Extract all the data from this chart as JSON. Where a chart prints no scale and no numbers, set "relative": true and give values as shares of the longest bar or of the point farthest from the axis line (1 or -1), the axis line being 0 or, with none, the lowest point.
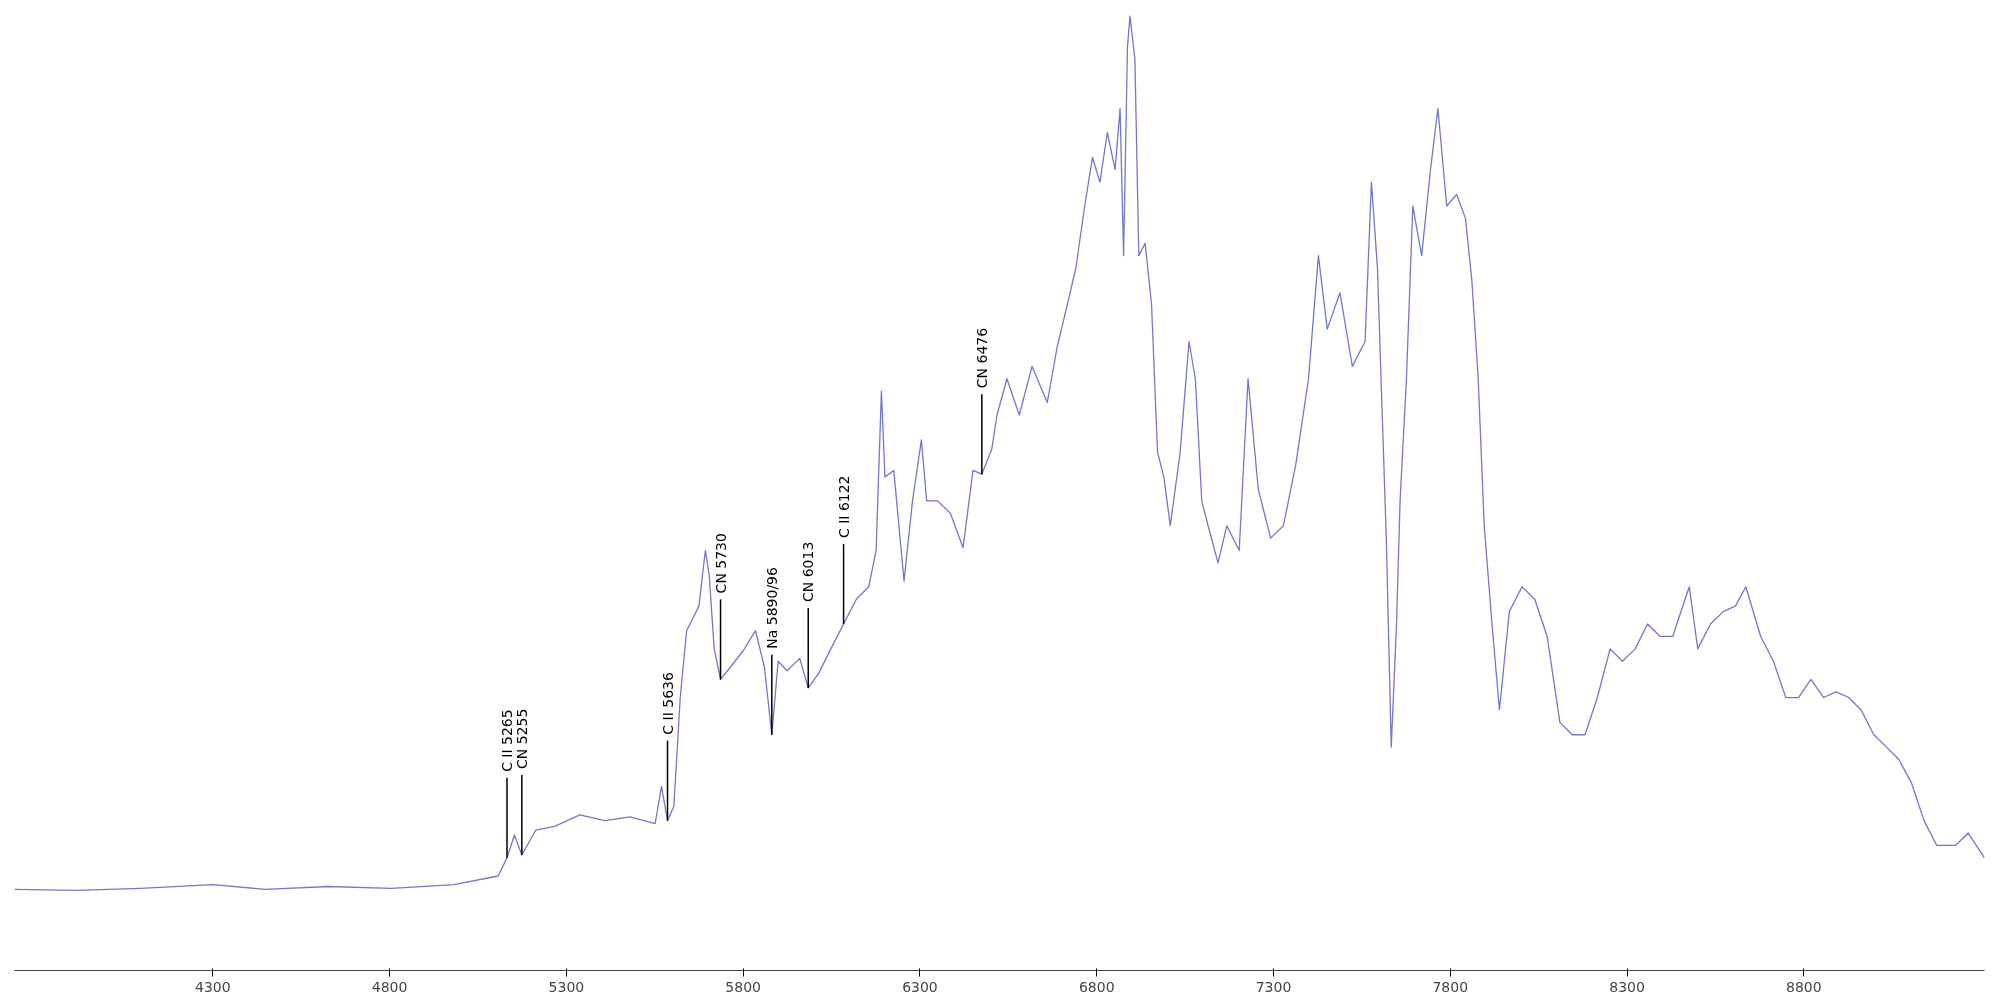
{
  "chart_data": {
    "type": "line",
    "relative": true,
    "grid": false,
    "marker": "none",
    "line_style": "solid",
    "xlim": [
      3739,
      9311
    ],
    "xticks": [
      4300,
      4800,
      5300,
      5800,
      6300,
      6800,
      7300,
      7800,
      8300,
      8800
    ],
    "tick_labels": "x",
    "series": [
      {
        "color": "#7378c8",
        "x": [
          3739,
          3916,
          4094,
          4300,
          4449,
          4627,
          4805,
          4982,
          5107,
          5132,
          5153,
          5174,
          5213,
          5267,
          5338,
          5409,
          5480,
          5551,
          5569,
          5586,
          5604,
          5622,
          5640,
          5658,
          5675,
          5693,
          5704,
          5718,
          5736,
          5764,
          5800,
          5835,
          5860,
          5881,
          5899,
          5924,
          5960,
          5984,
          6013,
          6048,
          6084,
          6120,
          6155,
          6176,
          6191,
          6201,
          6226,
          6255,
          6279,
          6304,
          6319,
          6350,
          6386,
          6422,
          6450,
          6475,
          6503,
          6518,
          6546,
          6581,
          6617,
          6660,
          6688,
          6717,
          6741,
          6766,
          6788,
          6809,
          6830,
          6852,
          6866,
          6876,
          6887,
          6894,
          6908,
          6919,
          6937,
          6955,
          6972,
          6990,
          7008,
          7036,
          7061,
          7079,
          7097,
          7115,
          7143,
          7168,
          7203,
          7228,
          7257,
          7292,
          7328,
          7363,
          7399,
          7427,
          7452,
          7488,
          7523,
          7559,
          7577,
          7594,
          7619,
          7633,
          7648,
          7658,
          7676,
          7694,
          7719,
          7744,
          7765,
          7790,
          7818,
          7843,
          7861,
          7879,
          7896,
          7918,
          7939,
          7967,
          8003,
          8039,
          8074,
          8110,
          8145,
          8181,
          8216,
          8252,
          8287,
          8323,
          8358,
          8394,
          8429,
          8476,
          8500,
          8536,
          8572,
          8607,
          8636,
          8678,
          8714,
          8749,
          8785,
          8820,
          8856,
          8891,
          8927,
          8962,
          8998,
          9034,
          9069,
          9105,
          9140,
          9176,
          9229,
          9265,
          9311
        ],
        "values": [
          0.085,
          0.084,
          0.086,
          0.09,
          0.085,
          0.088,
          0.086,
          0.09,
          0.099,
          0.118,
          0.142,
          0.121,
          0.147,
          0.151,
          0.163,
          0.157,
          0.161,
          0.154,
          0.193,
          0.157,
          0.172,
          0.286,
          0.356,
          0.369,
          0.382,
          0.44,
          0.414,
          0.337,
          0.305,
          0.318,
          0.335,
          0.356,
          0.318,
          0.247,
          0.324,
          0.314,
          0.327,
          0.296,
          0.311,
          0.337,
          0.363,
          0.389,
          0.402,
          0.44,
          0.607,
          0.517,
          0.524,
          0.408,
          0.492,
          0.556,
          0.492,
          0.492,
          0.479,
          0.443,
          0.524,
          0.52,
          0.546,
          0.582,
          0.62,
          0.582,
          0.633,
          0.595,
          0.653,
          0.698,
          0.736,
          0.801,
          0.852,
          0.826,
          0.878,
          0.839,
          0.903,
          0.749,
          0.968,
          1.0,
          0.955,
          0.749,
          0.762,
          0.698,
          0.543,
          0.517,
          0.466,
          0.543,
          0.659,
          0.62,
          0.492,
          0.466,
          0.427,
          0.466,
          0.44,
          0.62,
          0.504,
          0.453,
          0.466,
          0.53,
          0.62,
          0.749,
          0.672,
          0.71,
          0.633,
          0.659,
          0.826,
          0.736,
          0.453,
          0.234,
          0.363,
          0.492,
          0.62,
          0.801,
          0.749,
          0.839,
          0.903,
          0.801,
          0.813,
          0.788,
          0.723,
          0.62,
          0.466,
          0.363,
          0.273,
          0.376,
          0.402,
          0.389,
          0.35,
          0.26,
          0.247,
          0.247,
          0.286,
          0.337,
          0.324,
          0.337,
          0.363,
          0.35,
          0.35,
          0.402,
          0.337,
          0.363,
          0.376,
          0.382,
          0.402,
          0.35,
          0.324,
          0.286,
          0.286,
          0.305,
          0.286,
          0.292,
          0.286,
          0.273,
          0.247,
          0.234,
          0.221,
          0.196,
          0.157,
          0.131,
          0.131,
          0.144,
          0.118
        ]
      }
    ],
    "annotations": [
      {
        "text": "C II  5265",
        "x": 5132,
        "y": 0.118
      },
      {
        "text": "CN  5255",
        "x": 5174,
        "y": 0.121
      },
      {
        "text": "C II  5636",
        "x": 5586,
        "y": 0.157
      },
      {
        "text": "CN  5730",
        "x": 5736,
        "y": 0.305
      },
      {
        "text": "Na  5890/96",
        "x": 5881,
        "y": 0.247
      },
      {
        "text": "CN  6013",
        "x": 5984,
        "y": 0.296
      },
      {
        "text": "C II  6122",
        "x": 6084,
        "y": 0.363
      },
      {
        "text": "CN  6476",
        "x": 6475,
        "y": 0.52
      }
    ]
  }
}
